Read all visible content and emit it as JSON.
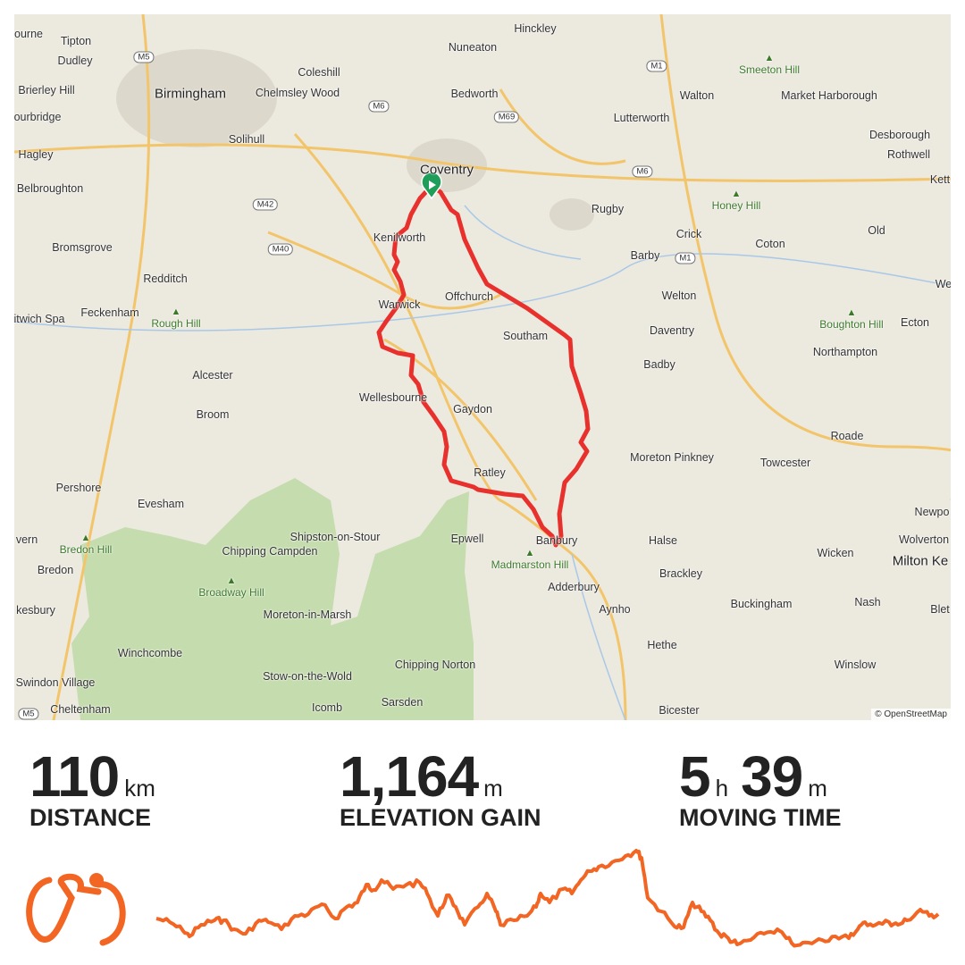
{
  "map": {
    "attribution": "© OpenStreetMap",
    "route_color": "#e8312d",
    "start_marker_color": "#1f9e5a",
    "places": [
      "ourne",
      "Tipton",
      "Dudley",
      "Birmingham",
      "Brierley Hill",
      "ourbridge",
      "Hagley",
      "Belbroughton",
      "Bromsgrove",
      "Redditch",
      "itwich Spa",
      "Feckenham",
      "Alcester",
      "Broom",
      "Pershore",
      "Evesham",
      "vern",
      "Bredon",
      "kesbury",
      "Winchcombe",
      "Swindon Village",
      "Cheltenham",
      "Coleshill",
      "Chelmsley Wood",
      "Solihull",
      "Nuneaton",
      "Hinckley",
      "Bedworth",
      "Coventry",
      "Kenilworth",
      "Warwick",
      "Offchurch",
      "Southam",
      "Wellesbourne",
      "Gaydon",
      "Ratley",
      "Epwell",
      "Banbury",
      "Adderbury",
      "Aynho",
      "Hethe",
      "Bicester",
      "Chipping Campden",
      "Shipston-on-Stour",
      "Moreton-in-Marsh",
      "Stow-on-the-Wold",
      "Chipping Norton",
      "Icomb",
      "Sarsden",
      "Walton",
      "Lutterworth",
      "Market Harborough",
      "Desborough",
      "Rothwell",
      "Kett",
      "Rugby",
      "Crick",
      "Barby",
      "Coton",
      "Old",
      "Welton",
      "Daventry",
      "Badby",
      "Ecton",
      "Northampton",
      "We",
      "Roade",
      "Moreton Pinkney",
      "Towcester",
      "Halse",
      "Brackley",
      "Wicken",
      "Wolverton",
      "Newpo",
      "Milton Ke",
      "Buckingham",
      "Nash",
      "Blet",
      "Winslow"
    ],
    "hills": [
      "Smeeton Hill",
      "Honey Hill",
      "Rough Hill",
      "Boughton Hill",
      "Bredon Hill",
      "Broadway Hill",
      "Madmarston Hill"
    ],
    "motorways": [
      "M5",
      "M6",
      "M69",
      "M1",
      "M6",
      "M42",
      "M40",
      "M1",
      "M5"
    ]
  },
  "stats": {
    "distance": {
      "value": "110",
      "unit": "km",
      "label": "DISTANCE"
    },
    "elevation": {
      "value": "1,164",
      "unit": "m",
      "label": "ELEVATION GAIN"
    },
    "moving_time": {
      "hours": "5",
      "hours_unit": "h",
      "minutes": "39",
      "minutes_unit": "m",
      "label": "MOVING TIME"
    }
  },
  "profile": {
    "color": "#f26522",
    "activity_icon": "cycling-icon"
  }
}
